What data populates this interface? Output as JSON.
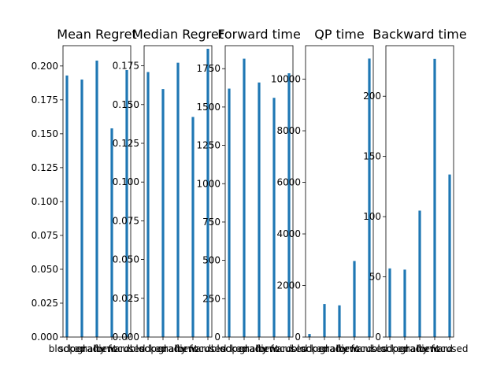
{
  "style": {
    "bar_color": "#1f77b4",
    "axis_color": "#000000",
    "background": "#ffffff"
  },
  "chart_data": [
    {
      "type": "bar",
      "title": "Mean Regret",
      "categories": [
        "blocked",
        "sdpenalty",
        "gradient",
        "forward",
        "focused"
      ],
      "tick_labels": [
        "blocked",
        "sdpenalty",
        "gradient",
        "forward",
        "focused"
      ],
      "values": [
        0.193,
        0.19,
        0.204,
        0.154,
        0.197
      ],
      "ylim": [
        0,
        0.215
      ],
      "yticks": [
        0.0,
        0.025,
        0.05,
        0.075,
        0.1,
        0.125,
        0.15,
        0.175,
        0.2
      ],
      "ytick_labels": [
        "0.000",
        "0.025",
        "0.050",
        "0.075",
        "0.100",
        "0.125",
        "0.150",
        "0.175",
        "0.200"
      ],
      "xlabel": "",
      "ylabel": "",
      "grid": false,
      "legend": "none"
    },
    {
      "type": "bar",
      "title": "Median Regret",
      "categories": [
        "blocked",
        "sdpenalty",
        "gradient",
        "forward",
        "focused"
      ],
      "tick_labels": [
        "blocked",
        "sdpenalty",
        "gradient",
        "forward",
        "focused"
      ],
      "values": [
        0.171,
        0.16,
        0.177,
        0.142,
        0.186
      ],
      "ylim": [
        0,
        0.188
      ],
      "yticks": [
        0.0,
        0.025,
        0.05,
        0.075,
        0.1,
        0.125,
        0.15,
        0.175
      ],
      "ytick_labels": [
        "0.000",
        "0.025",
        "0.050",
        "0.075",
        "0.100",
        "0.125",
        "0.150",
        "0.175"
      ],
      "xlabel": "",
      "ylabel": "",
      "grid": false,
      "legend": "none"
    },
    {
      "type": "bar",
      "title": "Forward time",
      "categories": [
        "blocked",
        "sdpenalty",
        "gradient",
        "forward",
        "focused"
      ],
      "tick_labels": [
        "blocked",
        "sdpenalty",
        "gradient",
        "forward",
        "focused"
      ],
      "values": [
        1620,
        1815,
        1660,
        1560,
        1720
      ],
      "ylim": [
        0,
        1900
      ],
      "yticks": [
        0,
        250,
        500,
        750,
        1000,
        1250,
        1500,
        1750
      ],
      "ytick_labels": [
        "0",
        "250",
        "500",
        "750",
        "1000",
        "1250",
        "1500",
        "1750"
      ],
      "xlabel": "",
      "ylabel": "",
      "grid": false,
      "legend": "none"
    },
    {
      "type": "bar",
      "title": "QP time",
      "categories": [
        "blocked",
        "sdpenalty",
        "gradient",
        "forward",
        "focused"
      ],
      "tick_labels": [
        "blocked",
        "sdpenalty",
        "gradient",
        "forward",
        "focused"
      ],
      "values": [
        120,
        1280,
        1230,
        2950,
        10800
      ],
      "ylim": [
        0,
        11300
      ],
      "yticks": [
        0,
        2000,
        4000,
        6000,
        8000,
        10000
      ],
      "ytick_labels": [
        "0",
        "2000",
        "4000",
        "6000",
        "8000",
        "10000"
      ],
      "xlabel": "",
      "ylabel": "",
      "grid": false,
      "legend": "none"
    },
    {
      "type": "bar",
      "title": "Backward time",
      "categories": [
        "blocked",
        "sdpenalty",
        "gradient",
        "forward",
        "focused"
      ],
      "tick_labels": [
        "blocked",
        "sdpenalty",
        "gradient",
        "forward",
        "focused"
      ],
      "values": [
        57,
        56,
        105,
        231,
        135
      ],
      "ylim": [
        0,
        242
      ],
      "yticks": [
        0,
        50,
        100,
        150,
        200
      ],
      "ytick_labels": [
        "0",
        "50",
        "100",
        "150",
        "200"
      ],
      "xlabel": "",
      "ylabel": "",
      "grid": false,
      "legend": "none"
    }
  ]
}
